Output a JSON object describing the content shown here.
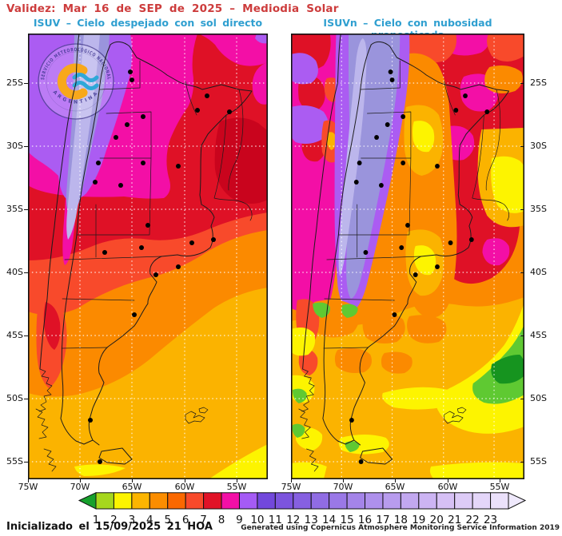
{
  "header": {
    "validity": "Validez: Mar 16 de SEP de 2025 – Mediodia Solar",
    "left_map_title": "ISUV – Cielo despejado con sol directo",
    "right_map_title": "ISUVn – Cielo con nubosidad pronosticada"
  },
  "logo": {
    "ring_text_top": "SERVICIO METEOROLÓGICO NACIONAL",
    "ring_text_bottom": "ARGENTINA"
  },
  "axes": {
    "lat_labels": [
      "25S",
      "30S",
      "35S",
      "40S",
      "45S",
      "50S",
      "55S"
    ],
    "lon_labels": [
      "75W",
      "70W",
      "65W",
      "60W",
      "55W"
    ]
  },
  "colorbar": {
    "values": [
      1,
      2,
      3,
      4,
      5,
      6,
      7,
      8,
      9,
      10,
      11,
      12,
      13,
      14,
      15,
      16,
      17,
      18,
      19,
      20,
      21,
      22,
      23
    ],
    "box_colors": [
      "#a6d71d",
      "#fdf400",
      "#fcb500",
      "#fb8d00",
      "#fa6800",
      "#f84a2b",
      "#e11227",
      "#f30fa6",
      "#a55bf5",
      "#7248dc",
      "#7c54de",
      "#8660e1",
      "#906ce4",
      "#9a78e7",
      "#a484e9",
      "#ae90ec",
      "#b89cee",
      "#c2a8f0",
      "#ccb4f3",
      "#d6c0f5",
      "#ddcbf7",
      "#e4d6f9",
      "#ebe1fb"
    ],
    "low_arrow_color": "#17a12c",
    "high_arrow_color": "#efe9fc"
  },
  "footer": {
    "initialized": "Inicializado el 15/09/2025 21 HOA",
    "attribution": "Generated using Copernicus Atmosphere Monitoring Service Information 2019"
  },
  "colors": {
    "title_red": "#cd3c3c",
    "subtitle_blue": "#2f9fd0",
    "map": {
      "magenta": "#f30fa6",
      "red": "#df1126",
      "dark-red": "#c9041d",
      "orange-red": "#f84a2b",
      "orange": "#fb8a00",
      "gold": "#fbb300",
      "yellow": "#fdf400",
      "green": "#5fc932",
      "dark-green": "#16941f",
      "violet": "#ab5cf2",
      "periwinkle": "#9a94dc",
      "periwinkle-light": "#bcb6ec"
    }
  },
  "chart_data": {
    "type": "heatmap",
    "title": "Validez: Mar 16 de SEP de 2025 – Mediodia Solar",
    "panels": [
      {
        "name": "ISUV – Cielo despejado con sol directo",
        "summary": "UV index max (9-13, violet/purple) over NW Andes; magenta/red (7-9) over north and center; decreasing southward through orange (4-6) to gold/yellow (2-4) in Patagonia and SE ocean"
      },
      {
        "name": "ISUVn – Cielo con nubosidad pronosticada",
        "summary": "Same field reduced by forecast cloudiness: mottled orange/gold/yellow patches over NW and center-north, yellow and green bands (1-3) over Patagonia and SE ocean"
      }
    ],
    "scale": {
      "label_values": [
        1,
        2,
        3,
        4,
        5,
        6,
        7,
        8,
        9,
        10,
        11,
        12,
        13,
        14,
        15,
        16,
        17,
        18,
        19,
        20,
        21,
        22,
        23
      ]
    },
    "lat_ticks": [
      "25S",
      "30S",
      "35S",
      "40S",
      "45S",
      "50S",
      "55S"
    ],
    "lon_ticks": [
      "75W",
      "70W",
      "65W",
      "60W",
      "55W"
    ]
  }
}
